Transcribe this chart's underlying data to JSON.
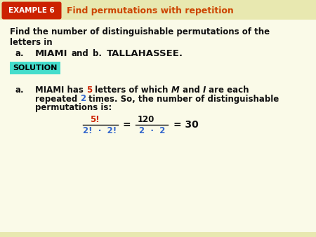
{
  "bg_color": "#fafae8",
  "header_stripe_color": "#e8e8b0",
  "example_box_color": "#cc2200",
  "example_box_text": "EXAMPLE 6",
  "example_box_text_color": "#ffffff",
  "header_title": "Find permutations with repetition",
  "header_title_color": "#cc4400",
  "solution_box_color": "#44ddcc",
  "solution_text": "SOLUTION",
  "body_text_color": "#111111",
  "red_color": "#cc2200",
  "blue_color": "#3366cc"
}
